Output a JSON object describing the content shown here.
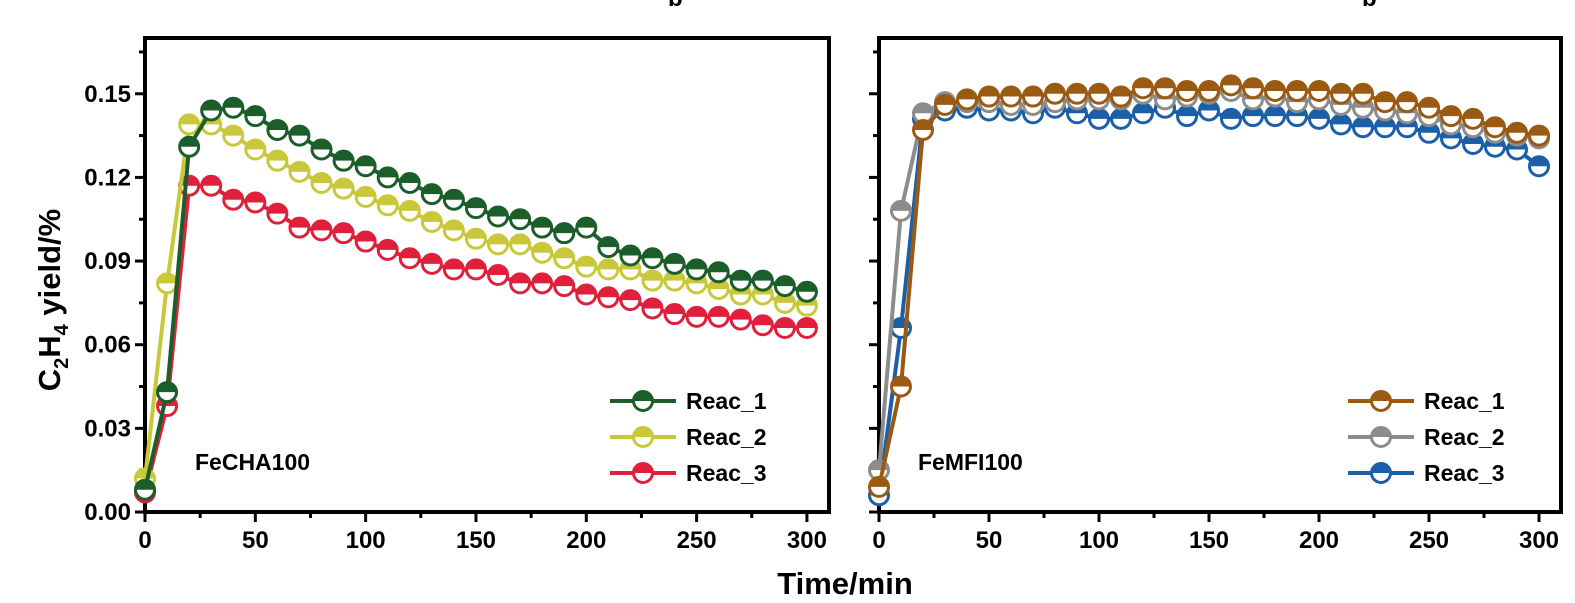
{
  "clipped_top_text": [
    "b",
    "b"
  ],
  "xlabel": "Time/min",
  "ylabel": {
    "base": "C",
    "sub1": "2",
    "mid": "H",
    "sub2": "4",
    "rest": " yield/%"
  },
  "x_ticks": [
    "0",
    "50",
    "100",
    "150",
    "200",
    "250",
    "300"
  ],
  "y_ticks": [
    "0.00",
    "0.03",
    "0.06",
    "0.09",
    "0.12",
    "0.15"
  ],
  "chart_data": [
    {
      "type": "line",
      "panel_label": "FeCHA100",
      "xlabel": "Time/min",
      "ylabel": "C2H4 yield/%",
      "xlim": [
        0,
        310
      ],
      "ylim": [
        0,
        0.17
      ],
      "legend_position": "bottom-right",
      "marker": "half-filled circle",
      "x": [
        0,
        10,
        20,
        30,
        40,
        50,
        60,
        70,
        80,
        90,
        100,
        110,
        120,
        130,
        140,
        150,
        160,
        170,
        180,
        190,
        200,
        210,
        220,
        230,
        240,
        250,
        260,
        270,
        280,
        290,
        300
      ],
      "series": [
        {
          "name": "Reac_1",
          "color": "#1b5e2a",
          "values": [
            0.008,
            0.043,
            0.131,
            0.144,
            0.145,
            0.142,
            0.137,
            0.135,
            0.13,
            0.126,
            0.124,
            0.12,
            0.118,
            0.114,
            0.112,
            0.109,
            0.106,
            0.105,
            0.102,
            0.1,
            0.102,
            0.095,
            0.092,
            0.091,
            0.089,
            0.087,
            0.086,
            0.083,
            0.083,
            0.081,
            0.079
          ]
        },
        {
          "name": "Reac_2",
          "color": "#c8c83a",
          "values": [
            0.012,
            0.082,
            0.139,
            0.139,
            0.135,
            0.13,
            0.126,
            0.122,
            0.118,
            0.116,
            0.113,
            0.11,
            0.108,
            0.104,
            0.101,
            0.098,
            0.096,
            0.096,
            0.093,
            0.091,
            0.088,
            0.087,
            0.087,
            0.083,
            0.083,
            0.082,
            0.08,
            0.078,
            0.078,
            0.075,
            0.074
          ]
        },
        {
          "name": "Reac_3",
          "color": "#e0203a",
          "values": [
            0.007,
            0.038,
            0.117,
            0.117,
            0.112,
            0.111,
            0.107,
            0.102,
            0.101,
            0.1,
            0.097,
            0.094,
            0.091,
            0.089,
            0.087,
            0.087,
            0.085,
            0.082,
            0.082,
            0.081,
            0.078,
            0.077,
            0.076,
            0.073,
            0.071,
            0.07,
            0.07,
            0.069,
            0.067,
            0.066,
            0.066
          ]
        }
      ]
    },
    {
      "type": "line",
      "panel_label": "FeMFI100",
      "xlabel": "Time/min",
      "ylabel": "C2H4 yield/%",
      "xlim": [
        0,
        310
      ],
      "ylim": [
        0,
        0.17
      ],
      "legend_position": "bottom-right",
      "marker": "half-filled circle",
      "x": [
        0,
        10,
        20,
        30,
        40,
        50,
        60,
        70,
        80,
        90,
        100,
        110,
        120,
        130,
        140,
        150,
        160,
        170,
        180,
        190,
        200,
        210,
        220,
        230,
        240,
        250,
        260,
        270,
        280,
        290,
        300
      ],
      "series": [
        {
          "name": "Reac_1",
          "color": "#9a5a12",
          "values": [
            0.009,
            0.045,
            0.137,
            0.146,
            0.148,
            0.149,
            0.149,
            0.149,
            0.15,
            0.15,
            0.15,
            0.149,
            0.152,
            0.152,
            0.151,
            0.151,
            0.153,
            0.152,
            0.151,
            0.151,
            0.151,
            0.15,
            0.15,
            0.147,
            0.147,
            0.145,
            0.142,
            0.141,
            0.138,
            0.136,
            0.135
          ]
        },
        {
          "name": "Reac_2",
          "color": "#8c8c8c",
          "values": [
            0.015,
            0.108,
            0.143,
            0.147,
            0.147,
            0.147,
            0.146,
            0.146,
            0.147,
            0.148,
            0.148,
            0.148,
            0.15,
            0.148,
            0.149,
            0.15,
            0.151,
            0.148,
            0.149,
            0.147,
            0.148,
            0.146,
            0.145,
            0.144,
            0.143,
            0.142,
            0.139,
            0.138,
            0.136,
            0.135,
            0.134
          ]
        },
        {
          "name": "Reac_3",
          "color": "#1a5fa8",
          "values": [
            0.006,
            0.066,
            0.141,
            0.144,
            0.145,
            0.144,
            0.144,
            0.143,
            0.145,
            0.143,
            0.141,
            0.141,
            0.143,
            0.145,
            0.142,
            0.144,
            0.141,
            0.142,
            0.142,
            0.142,
            0.141,
            0.139,
            0.138,
            0.138,
            0.138,
            0.136,
            0.134,
            0.132,
            0.131,
            0.13,
            0.124
          ]
        }
      ]
    }
  ]
}
